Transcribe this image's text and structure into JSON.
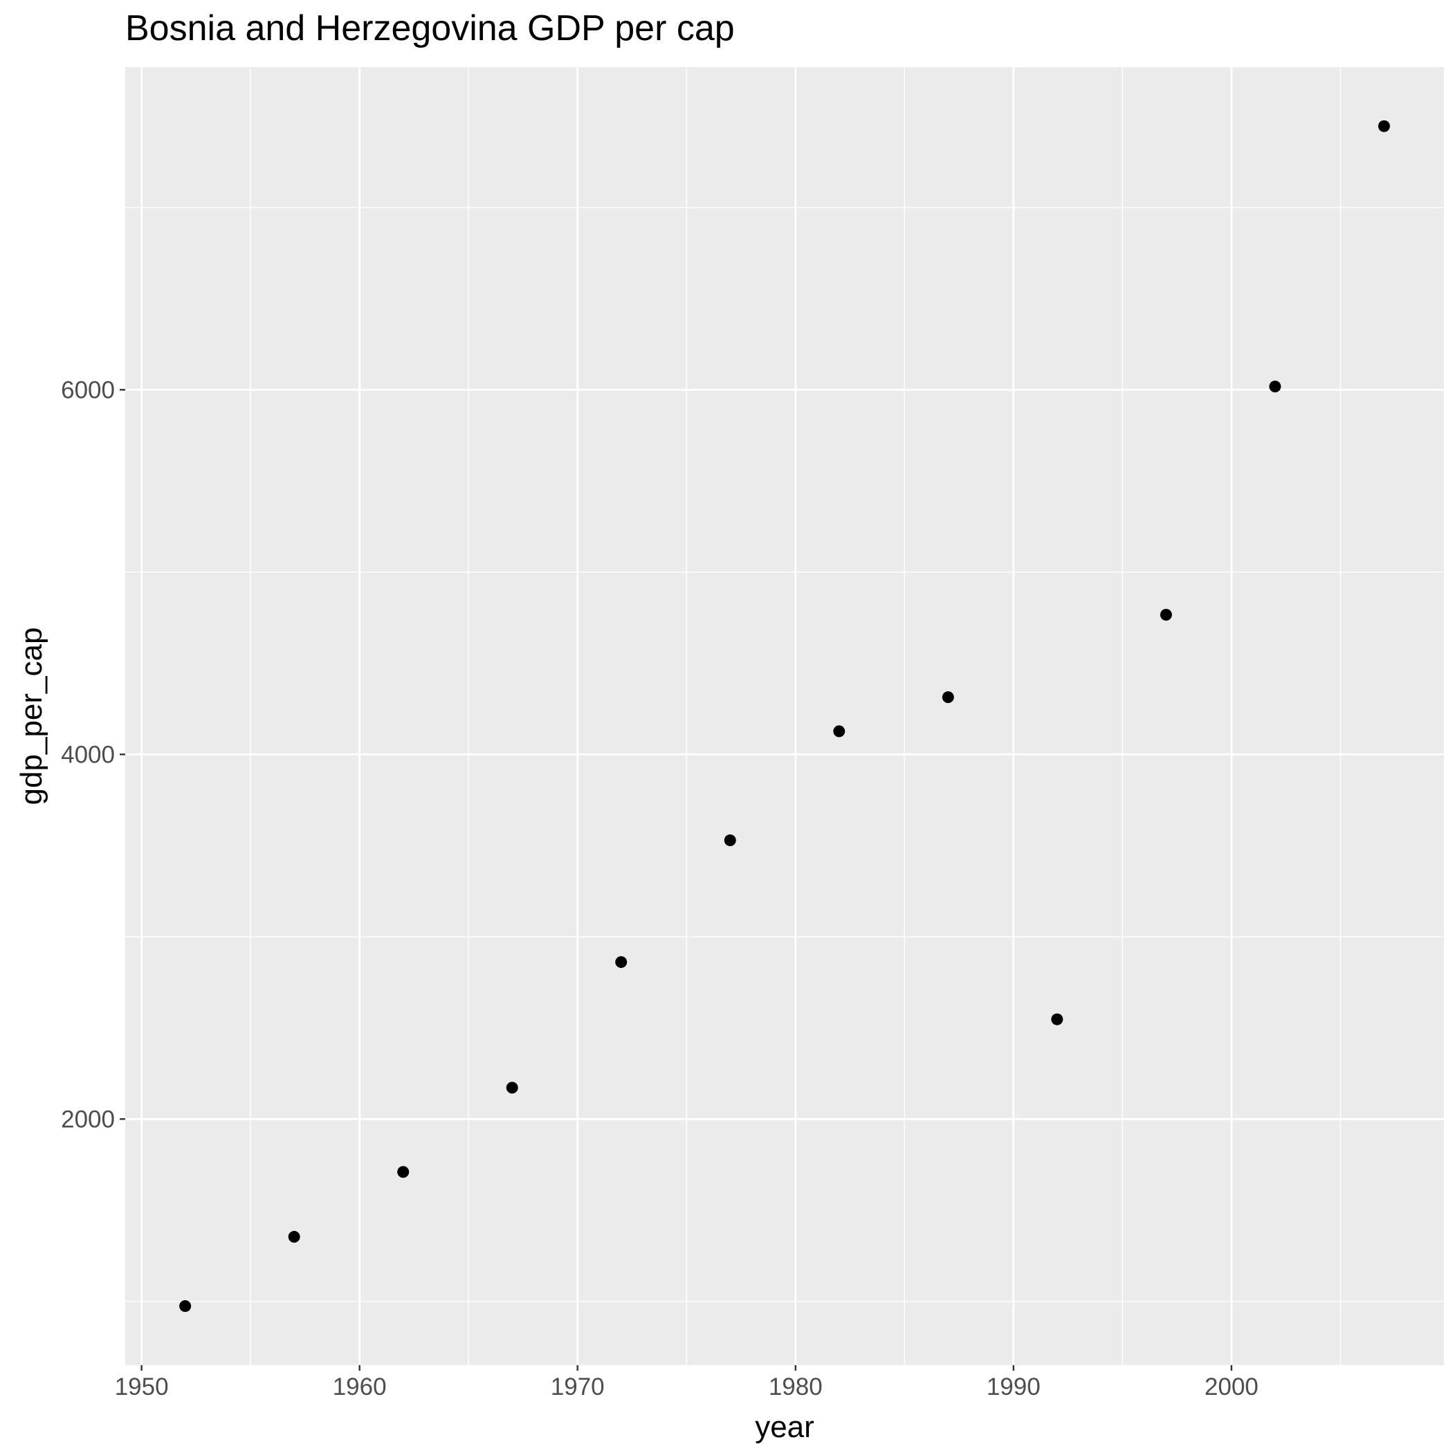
{
  "chart_data": {
    "type": "scatter",
    "title": "Bosnia and Herzegovina GDP per cap",
    "xlabel": "year",
    "ylabel": "gdp_per_cap",
    "x": [
      1952,
      1957,
      1962,
      1967,
      1972,
      1977,
      1982,
      1987,
      1992,
      1997,
      2002,
      2007
    ],
    "y": [
      974,
      1354,
      1710,
      2172,
      2861,
      3529,
      4127,
      4314,
      2547,
      4766,
      6018,
      7446
    ],
    "xlim": [
      1949.25,
      2009.75
    ],
    "ylim": [
      650.2,
      7769.8
    ],
    "x_major_ticks": [
      1950,
      1960,
      1970,
      1980,
      1990,
      2000
    ],
    "x_tick_labels": [
      "1950",
      "1960",
      "1970",
      "1980",
      "1990",
      "2000"
    ],
    "x_minor_ticks": [
      1955,
      1965,
      1975,
      1985,
      1995,
      2005
    ],
    "y_major_ticks": [
      2000,
      4000,
      6000
    ],
    "y_tick_labels": [
      "2000",
      "4000",
      "6000"
    ],
    "y_minor_ticks": [
      1000,
      3000,
      5000,
      7000
    ],
    "grid": true,
    "legend": "none",
    "colors": {
      "panel_background": "#EBEBEB",
      "grid": "#FFFFFF",
      "point": "#000000",
      "tick_label": "#4D4D4D",
      "tick_mark": "#333333"
    }
  }
}
